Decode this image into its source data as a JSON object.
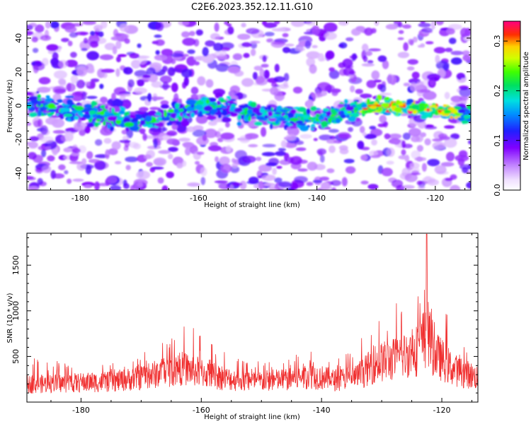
{
  "title": "C2E6.2023.352.12.11.G10",
  "chart_data": [
    {
      "type": "heatmap",
      "title": "C2E6.2023.352.12.11.G10",
      "xlabel": "Height of straight line (km)",
      "ylabel": "Frequency (Hz)",
      "xlim": [
        -189,
        -114
      ],
      "ylim": [
        -50,
        50
      ],
      "xticks": [
        -180,
        -160,
        -140,
        -120
      ],
      "yticks": [
        -40,
        -20,
        0,
        20,
        40
      ],
      "colorbar": {
        "label": "Normalized spectral amplitude",
        "range": [
          0,
          0.34
        ],
        "ticks": [
          "0.0",
          "0.1",
          "0.2",
          "0.3"
        ],
        "colormap": "rainbow (white → violet → blue → cyan → green → yellow → red → magenta)"
      },
      "ridge": {
        "description": "band of elevated amplitude centered near 0 Hz",
        "center_freq_hz": [
          {
            "x": -189,
            "y": 2
          },
          {
            "x": -180,
            "y": -4
          },
          {
            "x": -170,
            "y": -10
          },
          {
            "x": -160,
            "y": 0
          },
          {
            "x": -150,
            "y": -4
          },
          {
            "x": -140,
            "y": -8
          },
          {
            "x": -130,
            "y": 0
          },
          {
            "x": -120,
            "y": -3
          },
          {
            "x": -114,
            "y": -5
          }
        ],
        "peak_region_x": [
          -133,
          -116
        ]
      }
    },
    {
      "type": "line",
      "xlabel": "Height of straight line (km)",
      "ylabel": "SNR (10 * v/v)",
      "xlim": [
        -189,
        -114
      ],
      "ylim": [
        0,
        1850
      ],
      "xticks": [
        -180,
        -160,
        -140,
        -120
      ],
      "yticks": [
        500,
        1000,
        1500
      ],
      "color": "#f03030",
      "envelope": [
        {
          "x": -189,
          "base": 210,
          "max": 500
        },
        {
          "x": -180,
          "base": 230,
          "max": 420
        },
        {
          "x": -175,
          "base": 240,
          "max": 420
        },
        {
          "x": -170,
          "base": 290,
          "max": 560
        },
        {
          "x": -167,
          "base": 340,
          "max": 660
        },
        {
          "x": -163,
          "base": 400,
          "max": 900
        },
        {
          "x": -160,
          "base": 350,
          "max": 750
        },
        {
          "x": -157,
          "base": 290,
          "max": 600
        },
        {
          "x": -152,
          "base": 240,
          "max": 450
        },
        {
          "x": -145,
          "base": 270,
          "max": 480
        },
        {
          "x": -142,
          "base": 320,
          "max": 640
        },
        {
          "x": -138,
          "base": 260,
          "max": 500
        },
        {
          "x": -134,
          "base": 300,
          "max": 650
        },
        {
          "x": -131,
          "base": 460,
          "max": 950
        },
        {
          "x": -127,
          "base": 520,
          "max": 1150
        },
        {
          "x": -124,
          "base": 620,
          "max": 1250
        },
        {
          "x": -122.5,
          "base": 800,
          "max": 1850
        },
        {
          "x": -121,
          "base": 560,
          "max": 1250
        },
        {
          "x": -118,
          "base": 380,
          "max": 800
        },
        {
          "x": -114,
          "base": 290,
          "max": 600
        }
      ],
      "peak": {
        "x": -122.5,
        "y": 1840
      }
    }
  ]
}
